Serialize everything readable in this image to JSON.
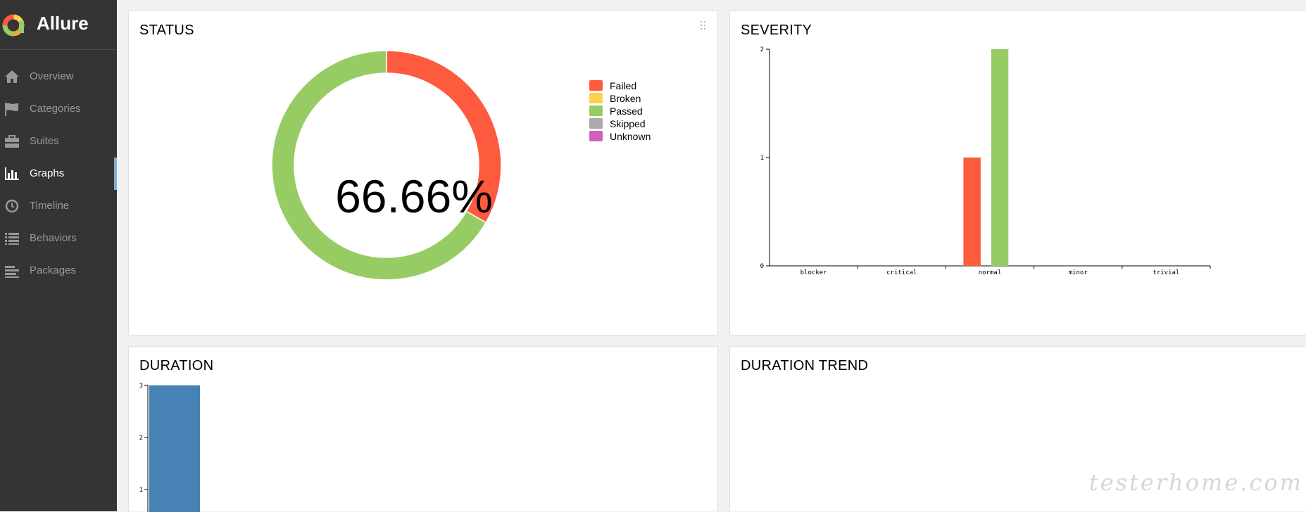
{
  "brand": {
    "name": "Allure"
  },
  "sidebar": {
    "items": [
      {
        "label": "Overview",
        "icon": "home-icon"
      },
      {
        "label": "Categories",
        "icon": "flag-icon"
      },
      {
        "label": "Suites",
        "icon": "briefcase-icon"
      },
      {
        "label": "Graphs",
        "icon": "bar-chart-icon",
        "active": true
      },
      {
        "label": "Timeline",
        "icon": "clock-icon"
      },
      {
        "label": "Behaviors",
        "icon": "list-icon"
      },
      {
        "label": "Packages",
        "icon": "align-left-icon"
      }
    ]
  },
  "widgets": {
    "status": {
      "title": "STATUS",
      "percent": "66.66%"
    },
    "severity": {
      "title": "SEVERITY"
    },
    "duration": {
      "title": "DURATION"
    },
    "trend": {
      "title": "DURATION TREND"
    }
  },
  "watermark": "testerhome.com",
  "colors": {
    "failed": "#fd5a3e",
    "broken": "#ffd050",
    "passed": "#97cc64",
    "skipped": "#aaaaaa",
    "unknown": "#d35ebe",
    "duration": "#4682b4",
    "sidebar_bg": "#343434",
    "active_marker": "#79b0e0"
  },
  "chart_data": [
    {
      "type": "pie",
      "title": "STATUS",
      "center_label": "66.66%",
      "legend": [
        "Failed",
        "Broken",
        "Passed",
        "Skipped",
        "Unknown"
      ],
      "categories": [
        "Failed",
        "Broken",
        "Passed",
        "Skipped",
        "Unknown"
      ],
      "values": [
        1,
        0,
        2,
        0,
        0
      ],
      "legend_position": "right"
    },
    {
      "type": "bar",
      "title": "SEVERITY",
      "categories": [
        "blocker",
        "critical",
        "normal",
        "minor",
        "trivial"
      ],
      "series": [
        {
          "name": "Failed",
          "values": [
            0,
            0,
            1,
            0,
            0
          ]
        },
        {
          "name": "Passed",
          "values": [
            0,
            0,
            2,
            0,
            0
          ]
        }
      ],
      "yticks": [
        0,
        1,
        2
      ],
      "ylim": [
        0,
        2
      ]
    },
    {
      "type": "bar",
      "title": "DURATION",
      "values": [
        3
      ],
      "yticks": [
        1,
        2,
        3
      ],
      "ylim": [
        0,
        3
      ]
    }
  ]
}
